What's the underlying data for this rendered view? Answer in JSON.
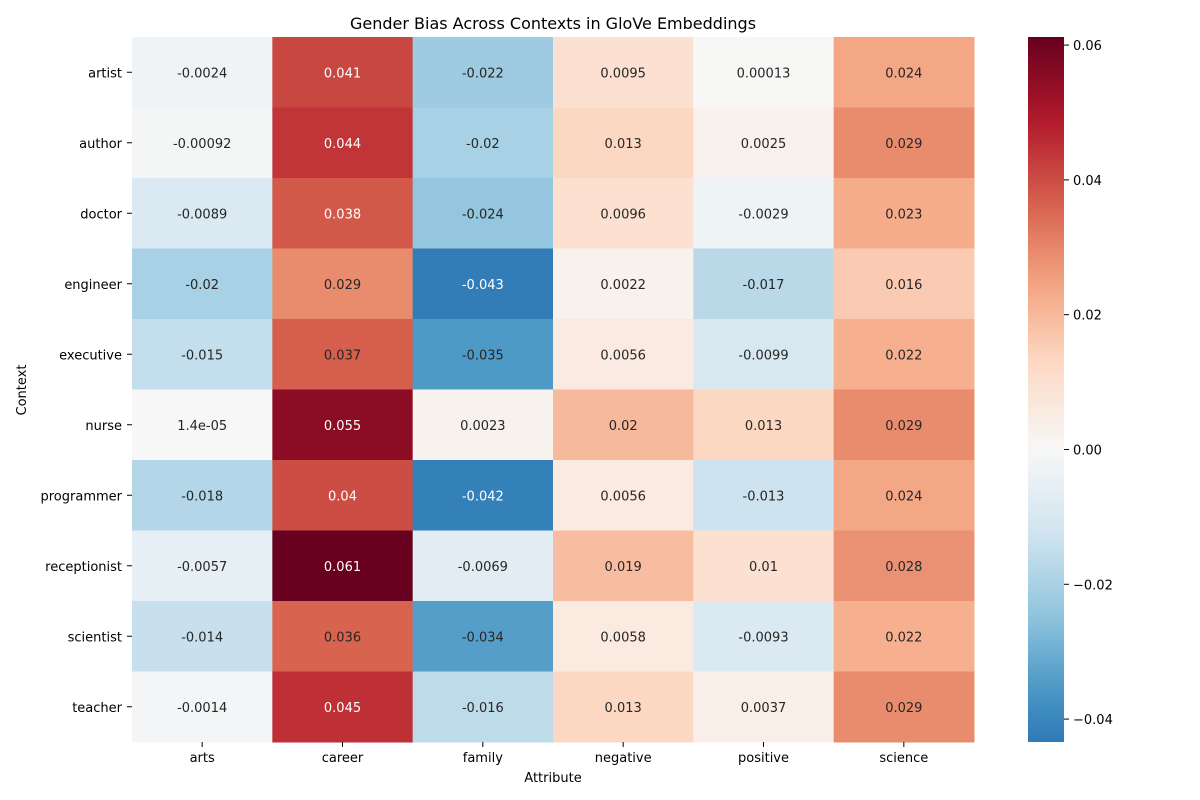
{
  "chart_data": {
    "type": "heatmap",
    "title": "Gender Bias Across Contexts in GloVe Embeddings",
    "xlabel": "Attribute",
    "ylabel": "Context",
    "x_categories": [
      "arts",
      "career",
      "family",
      "negative",
      "positive",
      "science"
    ],
    "y_categories": [
      "artist",
      "author",
      "doctor",
      "engineer",
      "executive",
      "nurse",
      "programmer",
      "receptionist",
      "scientist",
      "teacher"
    ],
    "values": [
      [
        -0.0024,
        0.041,
        -0.022,
        0.0095,
        0.00013,
        0.024
      ],
      [
        -0.00092,
        0.044,
        -0.02,
        0.013,
        0.0025,
        0.029
      ],
      [
        -0.0089,
        0.038,
        -0.024,
        0.0096,
        -0.0029,
        0.023
      ],
      [
        -0.02,
        0.029,
        -0.043,
        0.0022,
        -0.017,
        0.016
      ],
      [
        -0.015,
        0.037,
        -0.035,
        0.0056,
        -0.0099,
        0.022
      ],
      [
        1.4e-05,
        0.055,
        0.0023,
        0.02,
        0.013,
        0.029
      ],
      [
        -0.018,
        0.04,
        -0.042,
        0.0056,
        -0.013,
        0.024
      ],
      [
        -0.0057,
        0.061,
        -0.0069,
        0.019,
        0.01,
        0.028
      ],
      [
        -0.014,
        0.036,
        -0.034,
        0.0058,
        -0.0093,
        0.022
      ],
      [
        -0.0014,
        0.045,
        -0.016,
        0.013,
        0.0037,
        0.029
      ]
    ],
    "annotations": [
      [
        "-0.0024",
        "0.041",
        "-0.022",
        "0.0095",
        "0.00013",
        "0.024"
      ],
      [
        "-0.00092",
        "0.044",
        "-0.02",
        "0.013",
        "0.0025",
        "0.029"
      ],
      [
        "-0.0089",
        "0.038",
        "-0.024",
        "0.0096",
        "-0.0029",
        "0.023"
      ],
      [
        "-0.02",
        "0.029",
        "-0.043",
        "0.0022",
        "-0.017",
        "0.016"
      ],
      [
        "-0.015",
        "0.037",
        "-0.035",
        "0.0056",
        "-0.0099",
        "0.022"
      ],
      [
        "1.4e-05",
        "0.055",
        "0.0023",
        "0.02",
        "0.013",
        "0.029"
      ],
      [
        "-0.018",
        "0.04",
        "-0.042",
        "0.0056",
        "-0.013",
        "0.024"
      ],
      [
        "-0.0057",
        "0.061",
        "-0.0069",
        "0.019",
        "0.01",
        "0.028"
      ],
      [
        "-0.014",
        "0.036",
        "-0.034",
        "0.0058",
        "-0.0093",
        "0.022"
      ],
      [
        "-0.0014",
        "0.045",
        "-0.016",
        "0.013",
        "0.0037",
        "0.029"
      ]
    ],
    "colormap": "RdBu_r",
    "color_center": 0,
    "vmin": -0.0434,
    "vmax": 0.0612,
    "colorbar_ticks": [
      {
        "value": 0.06,
        "label": "0.06"
      },
      {
        "value": 0.04,
        "label": "0.04"
      },
      {
        "value": 0.02,
        "label": "0.02"
      },
      {
        "value": 0.0,
        "label": "0.00"
      },
      {
        "value": -0.02,
        "label": "−0.02"
      },
      {
        "value": -0.04,
        "label": "−0.04"
      }
    ]
  }
}
